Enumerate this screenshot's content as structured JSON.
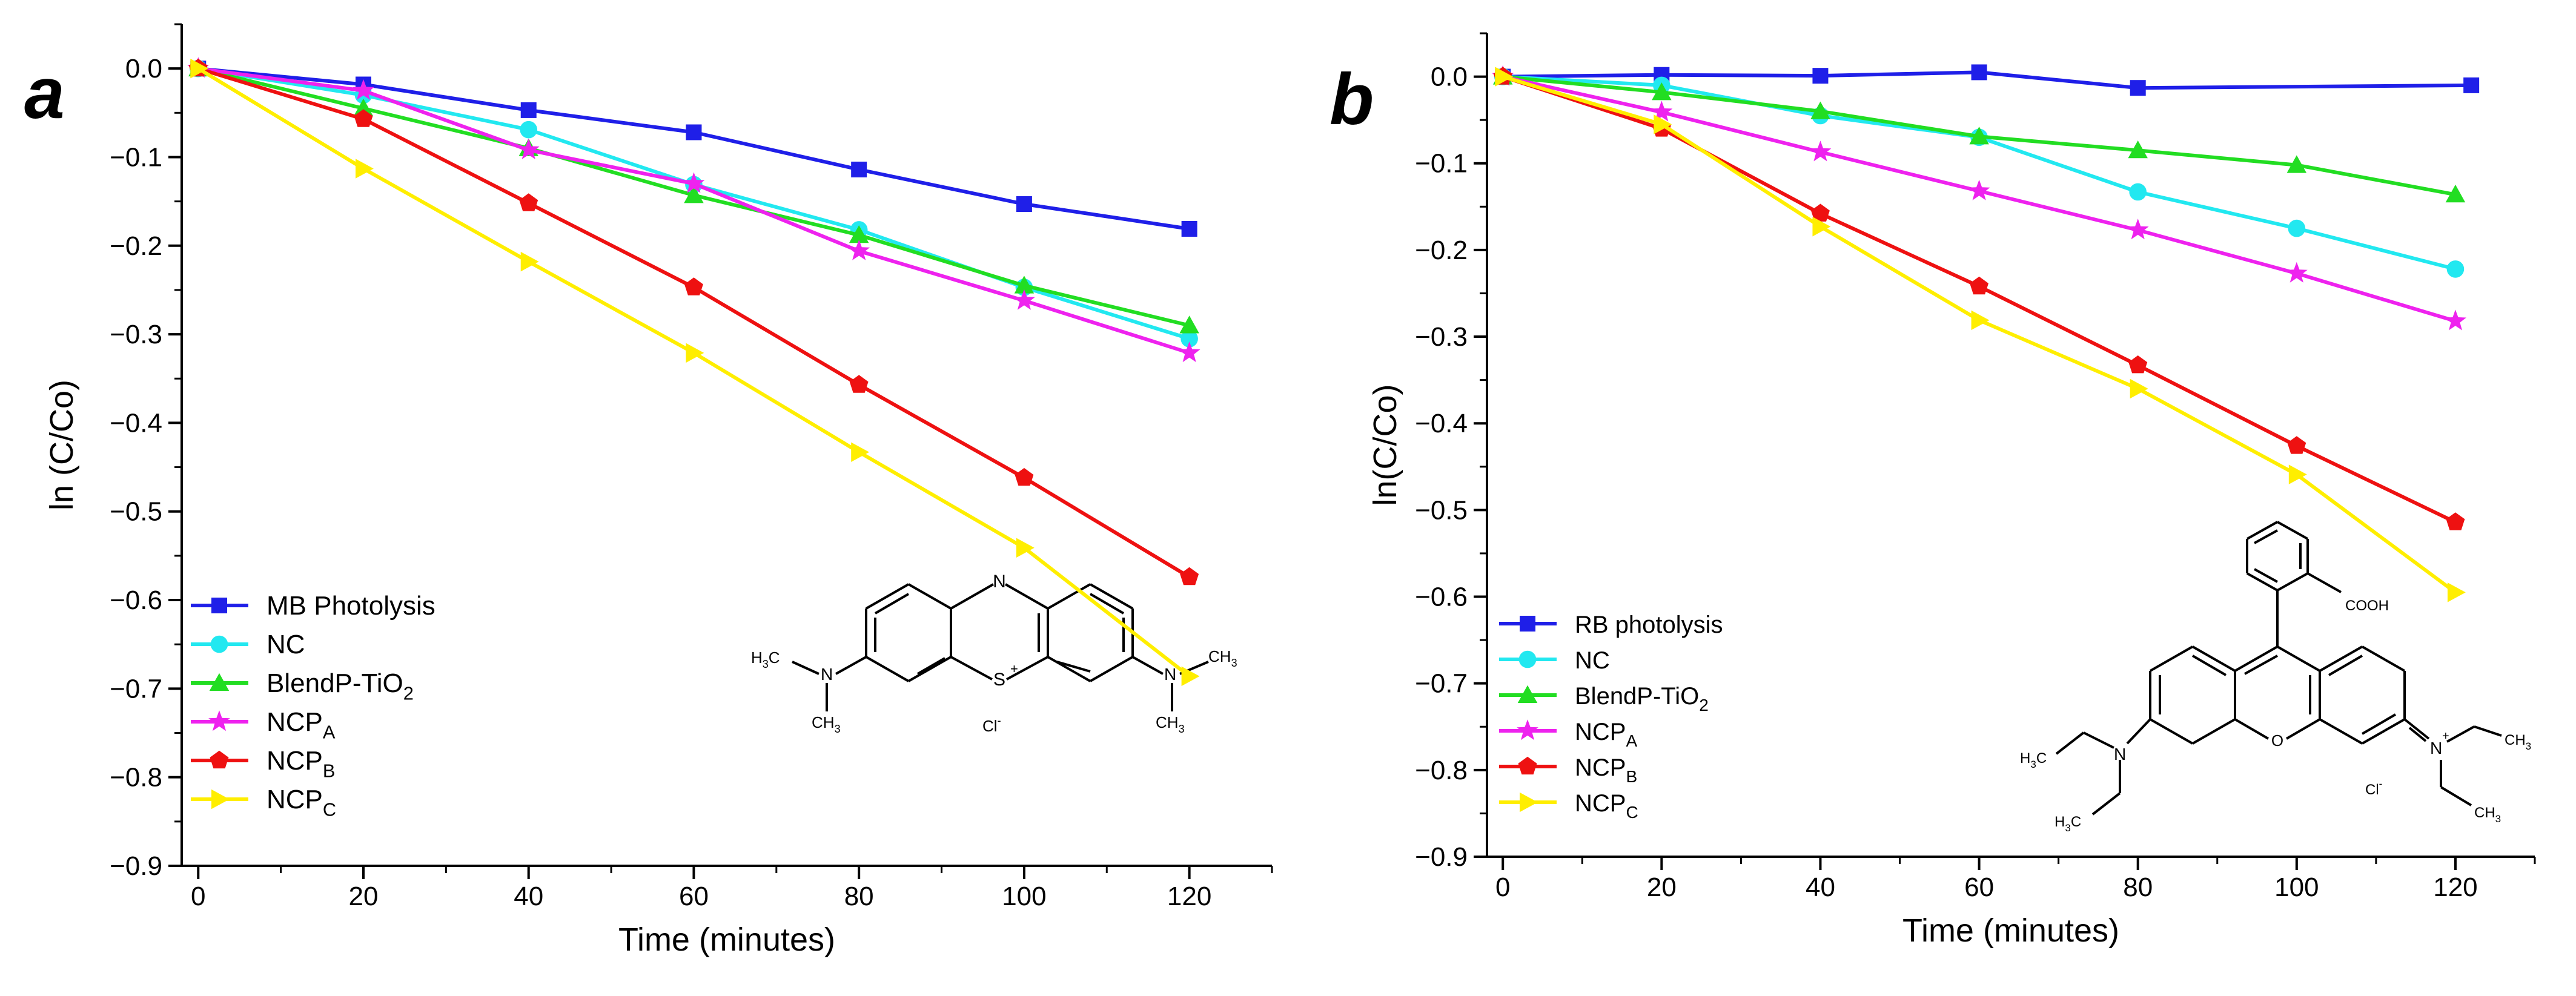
{
  "chart_data": [
    {
      "type": "line",
      "panel_label": "a",
      "xlabel": "Time (minutes)",
      "ylabel": "ln (C/Co)",
      "xlim": [
        -2,
        130
      ],
      "ylim": [
        -0.9,
        0.05
      ],
      "xticks": [
        "0",
        "20",
        "40",
        "60",
        "80",
        "100",
        "120"
      ],
      "yticks": [
        "0.0",
        "-0.1",
        "-0.2",
        "-0.3",
        "-0.4",
        "-0.5",
        "-0.6",
        "-0.7",
        "-0.8",
        "-0.9"
      ],
      "x": [
        0,
        20,
        40,
        60,
        80,
        100,
        120
      ],
      "legend_position": "bottom-left",
      "series": [
        {
          "name": "MB Photolysis",
          "sub": "",
          "suffix": "",
          "color": "#1f1fe8",
          "marker": "square",
          "values": [
            0,
            -0.018,
            -0.047,
            -0.072,
            -0.114,
            -0.153,
            -0.181
          ]
        },
        {
          "name": "NC",
          "sub": "",
          "suffix": "",
          "color": "#22e8f0",
          "marker": "circle",
          "values": [
            0,
            -0.03,
            -0.069,
            -0.131,
            -0.182,
            -0.247,
            -0.305
          ]
        },
        {
          "name": "BlendP-TiO",
          "sub": "2",
          "suffix": "",
          "color": "#22dd22",
          "marker": "triangle-up",
          "values": [
            0,
            -0.045,
            -0.09,
            -0.143,
            -0.188,
            -0.245,
            -0.29
          ]
        },
        {
          "name": "NCP",
          "sub": "A",
          "suffix": "",
          "color": "#ee22ee",
          "marker": "star",
          "values": [
            0,
            -0.025,
            -0.092,
            -0.13,
            -0.206,
            -0.262,
            -0.321
          ]
        },
        {
          "name": "NCP",
          "sub": "B",
          "suffix": "",
          "color": "#ee1111",
          "marker": "pentagon",
          "values": [
            0,
            -0.057,
            -0.152,
            -0.247,
            -0.357,
            -0.462,
            -0.574
          ]
        },
        {
          "name": "NCP",
          "sub": "C",
          "suffix": "",
          "color": "#ffee00",
          "marker": "triangle-right",
          "values": [
            0,
            -0.113,
            -0.218,
            -0.321,
            -0.433,
            -0.541,
            -0.686
          ]
        }
      ]
    },
    {
      "type": "line",
      "panel_label": "b",
      "xlabel": "Time (minutes)",
      "ylabel": "ln(C/Co)",
      "xlim": [
        -2,
        130
      ],
      "ylim": [
        -0.9,
        0.05
      ],
      "xticks": [
        "0",
        "20",
        "40",
        "60",
        "80",
        "100",
        "120"
      ],
      "yticks": [
        "0.0",
        "-0.1",
        "-0.2",
        "-0.3",
        "-0.4",
        "-0.5",
        "-0.6",
        "-0.7",
        "-0.8",
        "-0.9"
      ],
      "x": [
        0,
        20,
        40,
        60,
        80,
        100,
        120
      ],
      "legend_position": "bottom-left",
      "series": [
        {
          "name": "RB photolysis",
          "sub": "",
          "suffix": "",
          "color": "#1f1fe8",
          "marker": "square",
          "x": [
            0,
            20,
            40,
            60,
            80,
            122
          ],
          "values": [
            0,
            0.002,
            0.001,
            0.005,
            -0.013,
            -0.01
          ]
        },
        {
          "name": "NC",
          "sub": "",
          "suffix": "",
          "color": "#22e8f0",
          "marker": "circle",
          "values": [
            0,
            -0.01,
            -0.045,
            -0.07,
            -0.133,
            -0.175,
            -0.222
          ]
        },
        {
          "name": "BlendP-TiO",
          "sub": "2",
          "suffix": "",
          "color": "#22dd22",
          "marker": "triangle-up",
          "values": [
            0,
            -0.018,
            -0.04,
            -0.069,
            -0.085,
            -0.102,
            -0.136
          ]
        },
        {
          "name": "NCP",
          "sub": "A",
          "suffix": "",
          "color": "#ee22ee",
          "marker": "star",
          "values": [
            0,
            -0.041,
            -0.087,
            -0.132,
            -0.177,
            -0.227,
            -0.282
          ]
        },
        {
          "name": "NCP",
          "sub": "B",
          "suffix": "",
          "color": "#ee1111",
          "marker": "pentagon",
          "values": [
            0,
            -0.06,
            -0.158,
            -0.242,
            -0.333,
            -0.426,
            -0.514
          ]
        },
        {
          "name": "NCP",
          "sub": "C",
          "suffix": "",
          "color": "#ffee00",
          "marker": "triangle-right",
          "values": [
            0,
            -0.055,
            -0.173,
            -0.281,
            -0.36,
            -0.459,
            -0.595
          ]
        }
      ]
    }
  ],
  "structures": {
    "a": {
      "left_group": [
        "H",
        "3",
        "C",
        "N",
        "CH",
        "3"
      ],
      "right_group": [
        "N",
        "CH",
        "3",
        "CH",
        "3"
      ],
      "ring_n": "N",
      "ring_s": "S",
      "s_charge": "+",
      "anion": "Cl",
      "anion_charge": "-"
    },
    "b": {
      "cooh": "COOH",
      "left_n": "N",
      "left_et1": [
        "H",
        "3",
        "C"
      ],
      "left_et2": [
        "H",
        "3",
        "C"
      ],
      "ring_o": "O",
      "right_n": "N",
      "n_charge": "+",
      "right_et1": [
        "CH",
        "3"
      ],
      "right_et2": [
        "CH",
        "3"
      ],
      "anion": "Cl",
      "anion_charge": "-"
    }
  }
}
